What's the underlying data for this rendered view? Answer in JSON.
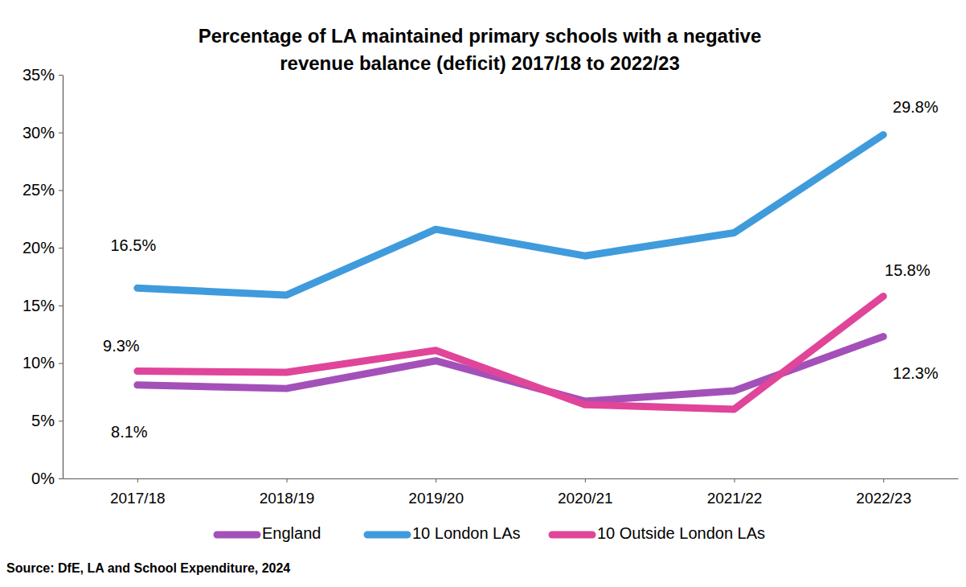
{
  "chart_data": {
    "type": "line",
    "title": "Percentage of LA maintained primary schools with a negative\nrevenue balance (deficit) 2017/18 to 2022/23",
    "source": "Source: DfE, LA and School Expenditure, 2024",
    "categories": [
      "2017/18",
      "2018/19",
      "2019/20",
      "2020/21",
      "2021/22",
      "2022/23"
    ],
    "series": [
      {
        "name": "England",
        "color": "#a450b9",
        "values": [
          8.1,
          7.8,
          10.2,
          6.7,
          7.6,
          12.3
        ],
        "value_labels": [
          "8.1%",
          null,
          null,
          null,
          null,
          "12.3%"
        ]
      },
      {
        "name": "10 London LAs",
        "color": "#3f9bdc",
        "values": [
          16.5,
          15.9,
          21.6,
          19.3,
          21.3,
          29.8
        ],
        "value_labels": [
          "16.5%",
          null,
          null,
          null,
          null,
          "29.8%"
        ]
      },
      {
        "name": "10 Outside London LAs",
        "color": "#e0459a",
        "values": [
          9.3,
          9.2,
          11.1,
          6.4,
          6.0,
          15.8
        ],
        "value_labels": [
          "9.3%",
          null,
          null,
          null,
          null,
          "15.8%"
        ]
      }
    ],
    "ylim": [
      0,
      35
    ],
    "yticks": [
      {
        "value": 0,
        "label": "0%"
      },
      {
        "value": 5,
        "label": "5%"
      },
      {
        "value": 10,
        "label": "10%"
      },
      {
        "value": 15,
        "label": "15%"
      },
      {
        "value": 20,
        "label": "20%"
      },
      {
        "value": 25,
        "label": "25%"
      },
      {
        "value": 30,
        "label": "30%"
      },
      {
        "value": 35,
        "label": "35%"
      }
    ],
    "grid": false,
    "legend": "bottom",
    "data_labels": true
  }
}
